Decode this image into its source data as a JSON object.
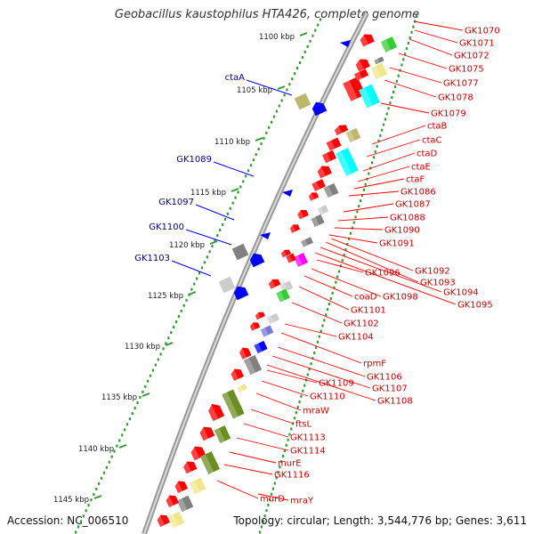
{
  "title": "Geobacillus kaustophilus HTA426, complete genome",
  "footer": {
    "accession": "Accession: NC_006510",
    "summary": "Topology: circular; Length: 3,544,776 bp; Genes: 3,611"
  },
  "colors": {
    "red": "#ff0000",
    "green": "#33cc33",
    "olive": "#6b8e23",
    "cyan": "#00ffff",
    "gray": "#808080",
    "lightgray": "#cccccc",
    "tan": "#f0e68c",
    "khaki": "#bdb76b",
    "blue": "#0000ff",
    "magenta": "#ff00ff",
    "periwinkle": "#7777dd",
    "tick": "#339933",
    "backbone": "#888888"
  },
  "kbp_labels": [
    "1100 kbp",
    "1105 kbp",
    "1110 kbp",
    "1115 kbp",
    "1120 kbp",
    "1125 kbp",
    "1130 kbp",
    "1135 kbp",
    "1140 kbp",
    "1145 kbp"
  ],
  "left_labels": [
    "ctaA",
    "GK1089",
    "GK1097",
    "GK1100",
    "GK1103"
  ],
  "right_labels": [
    "GK1070",
    "GK1071",
    "GK1072",
    "GK1075",
    "GK1077",
    "GK1078",
    "GK1079",
    "ctaB",
    "ctaC",
    "ctaD",
    "ctaE",
    "ctaF",
    "GK1086",
    "GK1087",
    "GK1088",
    "GK1090",
    "GK1091",
    "GK1092",
    "GK1093",
    "GK1094",
    "GK1095",
    "GK1096",
    "GK1098",
    "coaD",
    "GK1101",
    "GK1102",
    "GK1104",
    "rpmF",
    "GK1106",
    "GK1107",
    "GK1108",
    "GK1109",
    "GK1110",
    "mraW",
    "ftsL",
    "GK1113",
    "GK1114",
    "murE",
    "GK1116",
    "murD",
    "mraY"
  ]
}
